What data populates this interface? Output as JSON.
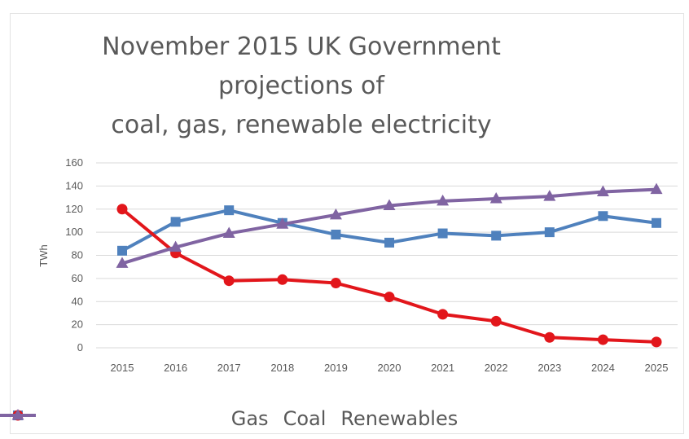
{
  "chart_data": {
    "type": "line",
    "title_lines": [
      "November 2015 UK Government",
      "projections of",
      "coal, gas, renewable electricity"
    ],
    "xlabel": "",
    "ylabel": "TWh",
    "x": [
      "2015",
      "2016",
      "2017",
      "2018",
      "2019",
      "2020",
      "2021",
      "2022",
      "2023",
      "2024",
      "2025"
    ],
    "ylim": [
      0,
      160
    ],
    "yticks": [
      "0",
      "20",
      "40",
      "60",
      "80",
      "100",
      "120",
      "140",
      "160"
    ],
    "grid": true,
    "legend_position": "bottom",
    "series": [
      {
        "name": "Gas",
        "color": "#4f81bd",
        "marker": "square",
        "values": [
          84,
          109,
          119,
          108,
          98,
          91,
          99,
          97,
          100,
          114,
          108
        ]
      },
      {
        "name": "Coal",
        "color": "#e2161b",
        "marker": "circle",
        "values": [
          120,
          82,
          58,
          59,
          56,
          44,
          29,
          23,
          9,
          7,
          5
        ]
      },
      {
        "name": "Renewables",
        "color": "#8064a2",
        "marker": "triangle",
        "values": [
          73,
          87,
          99,
          107,
          115,
          123,
          127,
          129,
          131,
          135,
          137
        ]
      }
    ]
  }
}
